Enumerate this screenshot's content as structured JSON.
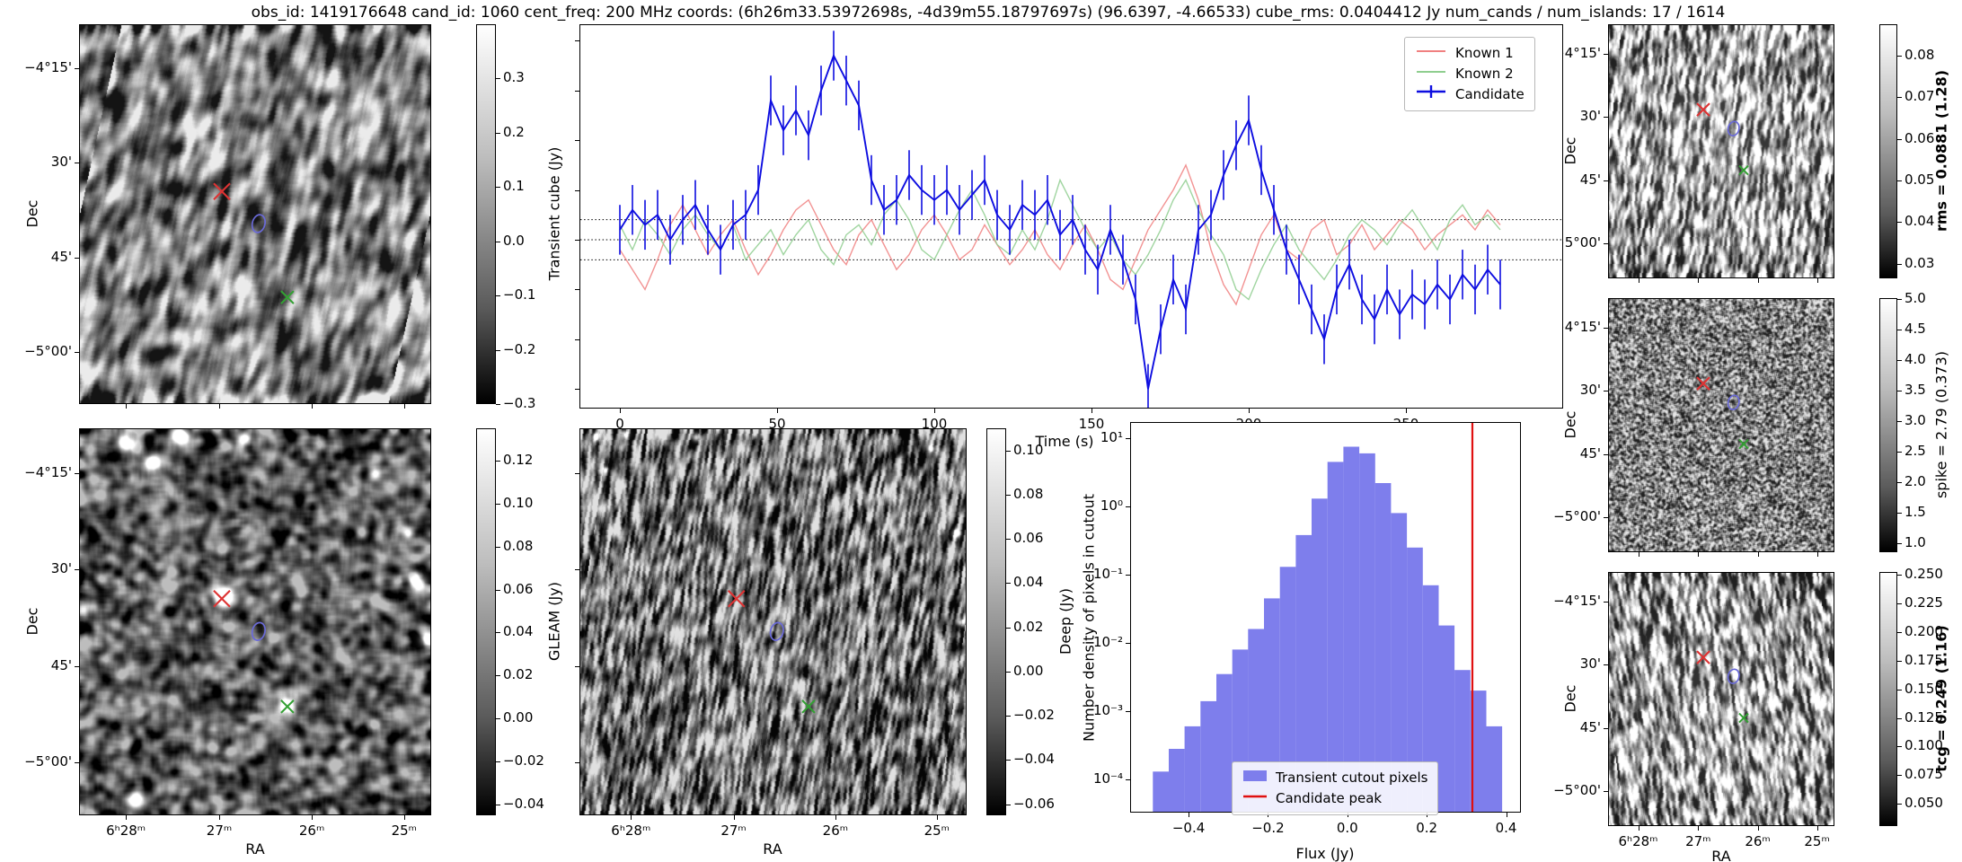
{
  "title": "obs_id: 1419176648 cand_id: 1060 cent_freq: 200 MHz coords: (6h26m33.53972698s, -4d39m55.18797697s) (96.6397, -4.66533) cube_rms: 0.0404412 Jy num_cands / num_islands: 17 / 1614",
  "axis_labels": {
    "dec": "Dec",
    "ra": "RA"
  },
  "image_panels": {
    "transient_cube": {
      "dec_ticks": [
        "−4°15'",
        "30'",
        "45'",
        "−5°00'"
      ],
      "colorbar": {
        "label": "Transient cube (Jy)",
        "ticks": [
          "0.3",
          "0.2",
          "0.1",
          "0.0",
          "−0.1",
          "−0.2",
          "−0.3"
        ]
      }
    },
    "gleam": {
      "dec_ticks": [
        "−4°15'",
        "30'",
        "45'",
        "−5°00'"
      ],
      "ra_ticks": [
        "6ʰ28ᵐ",
        "27ᵐ",
        "26ᵐ",
        "25ᵐ"
      ],
      "colorbar": {
        "label": "GLEAM (Jy)",
        "ticks": [
          "0.12",
          "0.10",
          "0.08",
          "0.06",
          "0.04",
          "0.02",
          "0.00",
          "−0.02",
          "−0.04"
        ]
      }
    },
    "deep": {
      "ra_ticks": [
        "6ʰ28ᵐ",
        "27ᵐ",
        "26ᵐ",
        "25ᵐ"
      ],
      "colorbar": {
        "label": "Deep (Jy)",
        "ticks": [
          "0.10",
          "0.08",
          "0.06",
          "0.04",
          "0.02",
          "0.00",
          "−0.02",
          "−0.04",
          "−0.06"
        ]
      }
    },
    "rms": {
      "dec_ticks": [
        "−4°15'",
        "30'",
        "45'",
        "−5°00'"
      ],
      "colorbar": {
        "label": "rms = 0.0881 (1.28)",
        "ticks": [
          "0.08",
          "0.07",
          "0.06",
          "0.05",
          "0.04",
          "0.03"
        ]
      }
    },
    "spike": {
      "dec_ticks": [
        "−4°15'",
        "30'",
        "45'",
        "−5°00'"
      ],
      "colorbar": {
        "label": "spike = 2.79 (0.373)",
        "ticks": [
          "5.0",
          "4.5",
          "4.0",
          "3.5",
          "3.0",
          "2.5",
          "2.0",
          "1.5",
          "1.0"
        ]
      }
    },
    "tcg": {
      "dec_ticks": [
        "−4°15'",
        "30'",
        "45'",
        "−5°00'"
      ],
      "ra_ticks": [
        "6ʰ28ᵐ",
        "27ᵐ",
        "26ᵐ",
        "25ᵐ"
      ],
      "colorbar": {
        "label": "tcg = 0.249 (1.16)",
        "ticks": [
          "0.250",
          "0.225",
          "0.200",
          "0.175",
          "0.150",
          "0.125",
          "0.100",
          "0.075",
          "0.050"
        ]
      }
    }
  },
  "markers": {
    "known_red_x": {
      "shape": "x",
      "color": "#dd3333"
    },
    "candidate_ellipse": {
      "shape": "ellipse",
      "color": "#6a6ad8"
    },
    "known_green_x": {
      "shape": "x",
      "color": "#33a033"
    }
  },
  "chart_data": [
    {
      "type": "line",
      "name": "lightcurve",
      "xlabel": "Time (s)",
      "xticks": [
        "0",
        "50",
        "100",
        "150",
        "200",
        "250"
      ],
      "xlim": [
        -13,
        300
      ],
      "ylim": [
        -0.34,
        0.43
      ],
      "reference_lines": {
        "style": "dotted",
        "values": [
          0.0404,
          0.0,
          -0.0404
        ]
      },
      "legend_position": "upper right",
      "x": [
        0,
        4,
        8,
        12,
        16,
        20,
        24,
        28,
        32,
        36,
        40,
        44,
        48,
        52,
        56,
        60,
        64,
        68,
        72,
        76,
        80,
        84,
        88,
        92,
        96,
        100,
        104,
        108,
        112,
        116,
        120,
        124,
        128,
        132,
        136,
        140,
        144,
        148,
        152,
        156,
        160,
        164,
        168,
        172,
        176,
        180,
        184,
        188,
        192,
        196,
        200,
        204,
        208,
        212,
        216,
        220,
        224,
        228,
        232,
        236,
        240,
        244,
        248,
        252,
        256,
        260,
        264,
        268,
        272,
        276,
        280
      ],
      "series": [
        {
          "name": "Known 1",
          "color": "#f08080",
          "values": [
            -0.02,
            -0.06,
            -0.1,
            -0.04,
            0.03,
            0.07,
            0.02,
            -0.03,
            0.01,
            0.04,
            -0.02,
            -0.07,
            -0.03,
            0.02,
            0.06,
            0.08,
            0.03,
            -0.02,
            -0.05,
            0.01,
            0.04,
            -0.01,
            -0.06,
            -0.03,
            0.02,
            0.05,
            0.01,
            -0.04,
            -0.02,
            0.03,
            -0.01,
            -0.05,
            -0.02,
            0.02,
            -0.03,
            -0.06,
            -0.01,
            0.03,
            -0.02,
            -0.08,
            -0.1,
            -0.04,
            0.02,
            0.06,
            0.1,
            0.15,
            0.08,
            -0.02,
            -0.09,
            -0.13,
            -0.06,
            0.01,
            0.05,
            -0.02,
            -0.04,
            0.02,
            0.04,
            -0.03,
            -0.01,
            0.03,
            -0.02,
            0.01,
            0.04,
            0.02,
            -0.02,
            0.01,
            0.03,
            0.05,
            0.02,
            0.06,
            0.03
          ]
        },
        {
          "name": "Known 2",
          "color": "#8fce8f",
          "values": [
            0.03,
            -0.02,
            0.04,
            0.01,
            -0.03,
            0.02,
            0.05,
            0.01,
            -0.02,
            0.03,
            -0.04,
            -0.01,
            0.02,
            -0.03,
            0.01,
            0.04,
            -0.02,
            -0.05,
            0.01,
            0.03,
            -0.01,
            0.05,
            0.08,
            0.04,
            -0.02,
            -0.04,
            0.01,
            0.06,
            0.1,
            0.05,
            -0.01,
            -0.03,
            0.02,
            -0.02,
            0.04,
            0.12,
            0.07,
            0.02,
            -0.02,
            0.01,
            -0.04,
            -0.07,
            -0.03,
            0.02,
            0.08,
            0.12,
            0.06,
            0.01,
            -0.03,
            -0.1,
            -0.12,
            -0.06,
            -0.01,
            0.03,
            -0.02,
            -0.05,
            -0.08,
            -0.04,
            0.01,
            0.04,
            0.02,
            -0.01,
            0.03,
            0.06,
            0.02,
            -0.02,
            0.04,
            0.07,
            0.03,
            0.05,
            0.02
          ]
        },
        {
          "name": "Candidate",
          "color": "#0d0de0",
          "yerr": 0.05,
          "values": [
            0.02,
            0.06,
            0.03,
            0.05,
            0.0,
            0.04,
            0.07,
            0.02,
            -0.02,
            0.03,
            0.05,
            0.1,
            0.28,
            0.22,
            0.26,
            0.21,
            0.3,
            0.37,
            0.32,
            0.27,
            0.12,
            0.06,
            0.08,
            0.13,
            0.1,
            0.08,
            0.1,
            0.06,
            0.09,
            0.12,
            0.05,
            0.02,
            0.07,
            0.05,
            0.08,
            0.01,
            0.04,
            -0.02,
            -0.06,
            0.02,
            -0.04,
            -0.12,
            -0.3,
            -0.18,
            -0.08,
            -0.14,
            0.02,
            0.05,
            0.13,
            0.19,
            0.24,
            0.14,
            0.06,
            -0.02,
            -0.08,
            -0.14,
            -0.2,
            -0.1,
            -0.05,
            -0.12,
            -0.16,
            -0.1,
            -0.15,
            -0.11,
            -0.13,
            -0.09,
            -0.12,
            -0.07,
            -0.1,
            -0.06,
            -0.09
          ]
        }
      ]
    },
    {
      "type": "bar",
      "name": "flux_histogram",
      "xlabel": "Flux (Jy)",
      "ylabel": "Number density of pixels in cutout",
      "yscale": "log",
      "xticks": [
        "−0.4",
        "−0.2",
        "0.0",
        "0.2",
        "0.4"
      ],
      "yticks": [
        "10¹",
        "10⁰",
        "10⁻¹",
        "10⁻²",
        "10⁻³",
        "10⁻⁴"
      ],
      "xlim": [
        -0.545,
        0.435
      ],
      "bar_color": "#7e7eec",
      "bin_edges": [
        -0.49,
        -0.45,
        -0.41,
        -0.37,
        -0.33,
        -0.29,
        -0.25,
        -0.21,
        -0.17,
        -0.13,
        -0.09,
        -0.05,
        -0.01,
        0.03,
        0.07,
        0.11,
        0.15,
        0.19,
        0.23,
        0.27,
        0.31,
        0.35,
        0.39
      ],
      "densities": [
        0.00013,
        0.00028,
        0.0006,
        0.0014,
        0.0035,
        0.008,
        0.016,
        0.045,
        0.13,
        0.38,
        1.3,
        4.5,
        7.5,
        6.0,
        2.2,
        0.8,
        0.25,
        0.07,
        0.018,
        0.004,
        0.002,
        0.0006
      ],
      "candidate_peak": 0.315,
      "legend": [
        {
          "label": "Transient cutout pixels",
          "color": "#7e7eec"
        },
        {
          "label": "Candidate peak",
          "color": "#e01010"
        }
      ]
    }
  ]
}
